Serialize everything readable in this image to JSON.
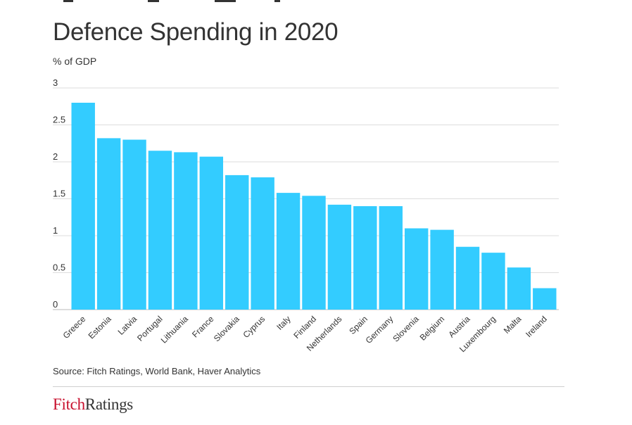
{
  "header": {
    "title": "Defence Spending in 2020",
    "subtitle": "% of GDP"
  },
  "chart_data": {
    "type": "bar",
    "categories": [
      "Greece",
      "Estonia",
      "Latvia",
      "Portugal",
      "Lithuania",
      "France",
      "Slovakia",
      "Cyprus",
      "Italy",
      "Finland",
      "Netherlands",
      "Spain",
      "Germany",
      "Slovenia",
      "Belgium",
      "Austria",
      "Luxembourg",
      "Malta",
      "Ireland"
    ],
    "values": [
      2.8,
      2.32,
      2.3,
      2.15,
      2.13,
      2.07,
      1.82,
      1.79,
      1.58,
      1.54,
      1.42,
      1.4,
      1.4,
      1.1,
      1.08,
      0.85,
      0.77,
      0.57,
      0.29
    ],
    "yticks": [
      "0",
      "0.5",
      "1",
      "1.5",
      "2",
      "2.5",
      "3"
    ],
    "ylim": [
      0,
      3
    ],
    "grid": true,
    "color": "#33ccff"
  },
  "footer": {
    "source": "Source: Fitch Ratings, World Bank, Haver Analytics",
    "logo_part1": "Fitch",
    "logo_part2": "Ratings"
  }
}
